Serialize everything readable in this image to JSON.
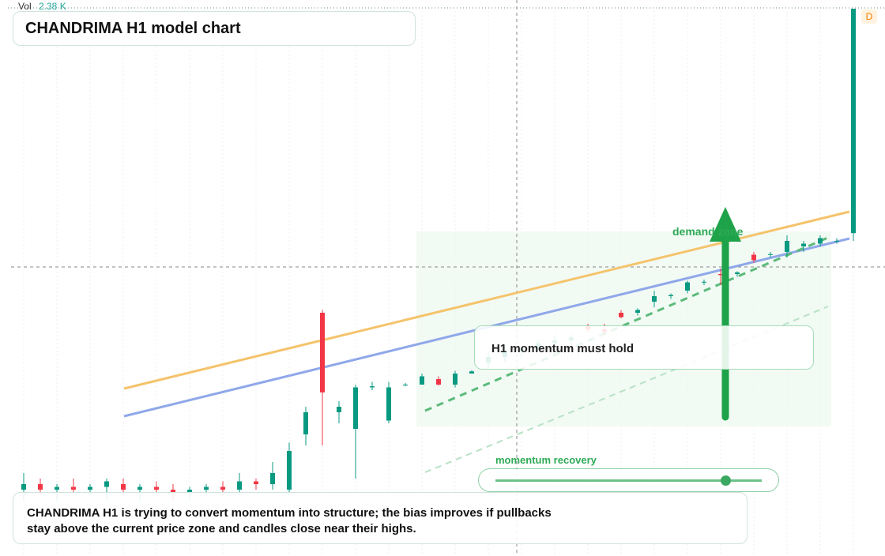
{
  "header": {
    "title": "CHANDRIMA H1 model chart"
  },
  "volume": {
    "label": "Vol",
    "value": "2.38 K"
  },
  "badge": "D",
  "annotations": {
    "zone": "demand zone",
    "box": "H1 momentum must hold",
    "slider": "momentum recovery"
  },
  "caption": "CHANDRIMA H1 is trying to convert momentum into structure; the bias improves if pullbacks stay above the current price zone and candles close near their highs.",
  "candles": {
    "ylim": [
      0,
      100
    ],
    "up_color": "#089981",
    "down_color": "#f23645",
    "ohlc": [
      [
        12,
        15,
        10,
        13
      ],
      [
        13,
        14,
        11,
        12
      ],
      [
        12,
        13,
        10,
        12.5
      ],
      [
        12.5,
        14,
        11,
        12
      ],
      [
        12,
        13,
        11,
        12.5
      ],
      [
        12.5,
        14,
        10,
        13.5
      ],
      [
        13,
        14,
        11,
        12
      ],
      [
        12,
        13,
        10,
        12.5
      ],
      [
        12.5,
        13.5,
        11,
        12
      ],
      [
        12,
        13,
        10,
        11.5
      ],
      [
        11.5,
        12.5,
        10,
        12
      ],
      [
        12,
        13,
        11,
        12.5
      ],
      [
        12.5,
        13.5,
        11,
        12
      ],
      [
        12,
        15,
        11,
        13.5
      ],
      [
        13.5,
        14,
        12,
        13
      ],
      [
        13,
        17,
        12,
        15
      ],
      [
        12,
        20.5,
        11,
        19
      ],
      [
        22,
        27,
        20,
        26
      ],
      [
        44,
        44.5,
        20,
        29.6
      ],
      [
        26,
        28,
        24,
        27
      ],
      [
        23,
        31,
        14,
        30.5
      ],
      [
        30.5,
        31.5,
        30,
        30.7
      ],
      [
        24.5,
        31.5,
        24,
        30.5
      ],
      [
        31,
        31.3,
        30.7,
        31
      ],
      [
        31,
        33,
        31,
        32.5
      ],
      [
        32,
        32.5,
        30.8,
        31
      ],
      [
        31,
        33.5,
        30.5,
        33
      ],
      [
        33,
        33.6,
        33,
        33.4
      ],
      [
        35,
        37,
        34,
        36
      ],
      [
        36,
        38,
        35,
        37
      ],
      [
        37,
        38,
        36,
        37.5
      ],
      [
        37.5,
        39,
        37,
        38.5
      ],
      [
        38.5,
        40,
        38,
        39
      ],
      [
        39,
        40,
        38,
        39.5
      ],
      [
        41.5,
        42,
        40.5,
        41
      ],
      [
        41,
        42,
        40,
        40.5
      ],
      [
        44,
        44.5,
        43,
        43.2
      ],
      [
        44,
        44.8,
        43.5,
        44.5
      ],
      [
        46,
        48,
        45,
        47
      ],
      [
        47,
        47.5,
        46.5,
        47.2
      ],
      [
        48,
        49.8,
        47.5,
        49.5
      ],
      [
        49.5,
        50,
        49,
        49.6
      ],
      [
        51,
        52,
        49,
        50.8
      ],
      [
        51,
        51.5,
        50.5,
        51.3
      ],
      [
        54.5,
        55,
        53,
        53.5
      ],
      [
        54.5,
        55,
        54,
        54.6
      ],
      [
        55,
        58,
        54,
        57
      ],
      [
        56,
        57,
        55,
        56.5
      ],
      [
        56.5,
        58,
        56,
        57.5
      ],
      [
        57,
        57.5,
        56.5,
        57
      ],
      [
        58.4,
        99,
        57,
        99
      ]
    ]
  }
}
